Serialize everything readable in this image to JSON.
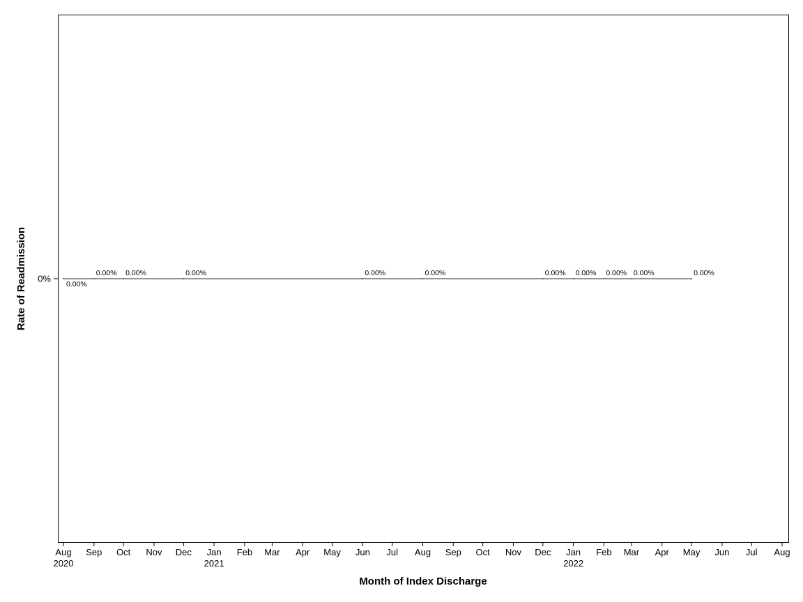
{
  "chart_data": {
    "type": "line",
    "title": "",
    "xlabel": "Month of Index Discharge",
    "ylabel": "Rate of Readmission",
    "x_axis": {
      "range": [
        "2020-08",
        "2022-08"
      ],
      "ticks": [
        {
          "date": "2020-08",
          "label": "Aug",
          "year": "2020"
        },
        {
          "date": "2020-09",
          "label": "Sep",
          "year": ""
        },
        {
          "date": "2020-10",
          "label": "Oct",
          "year": ""
        },
        {
          "date": "2020-11",
          "label": "Nov",
          "year": ""
        },
        {
          "date": "2020-12",
          "label": "Dec",
          "year": ""
        },
        {
          "date": "2021-01",
          "label": "Jan",
          "year": "2021"
        },
        {
          "date": "2021-02",
          "label": "Feb",
          "year": ""
        },
        {
          "date": "2021-03",
          "label": "Mar",
          "year": ""
        },
        {
          "date": "2021-04",
          "label": "Apr",
          "year": ""
        },
        {
          "date": "2021-05",
          "label": "May",
          "year": ""
        },
        {
          "date": "2021-06",
          "label": "Jun",
          "year": ""
        },
        {
          "date": "2021-07",
          "label": "Jul",
          "year": ""
        },
        {
          "date": "2021-08",
          "label": "Aug",
          "year": ""
        },
        {
          "date": "2021-09",
          "label": "Sep",
          "year": ""
        },
        {
          "date": "2021-10",
          "label": "Oct",
          "year": ""
        },
        {
          "date": "2021-11",
          "label": "Nov",
          "year": ""
        },
        {
          "date": "2021-12",
          "label": "Dec",
          "year": ""
        },
        {
          "date": "2022-01",
          "label": "Jan",
          "year": "2022"
        },
        {
          "date": "2022-02",
          "label": "Feb",
          "year": ""
        },
        {
          "date": "2022-03",
          "label": "Mar",
          "year": ""
        },
        {
          "date": "2022-04",
          "label": "Apr",
          "year": ""
        },
        {
          "date": "2022-05",
          "label": "May",
          "year": ""
        },
        {
          "date": "2022-06",
          "label": "Jun",
          "year": ""
        },
        {
          "date": "2022-07",
          "label": "Jul",
          "year": ""
        },
        {
          "date": "2022-08",
          "label": "Aug",
          "year": ""
        }
      ]
    },
    "y_axis": {
      "ticks": [
        {
          "value": 0,
          "label": "0%"
        }
      ]
    },
    "grid": false,
    "legend": "none",
    "series": [
      {
        "points": [
          {
            "x": "2020-08-01",
            "y": 0,
            "label": "0.00%",
            "label_pos": "below"
          },
          {
            "x": "2020-09-01",
            "y": 0,
            "label": "0.00%",
            "label_pos": "above"
          },
          {
            "x": "2020-10-01",
            "y": 0,
            "label": "0.00%",
            "label_pos": "above"
          },
          {
            "x": "2020-12-01",
            "y": 0,
            "label": "0.00%",
            "label_pos": "above"
          },
          {
            "x": "2021-06-01",
            "y": 0,
            "label": "0.00%",
            "label_pos": "above"
          },
          {
            "x": "2021-08-01",
            "y": 0,
            "label": "0.00%",
            "label_pos": "above"
          },
          {
            "x": "2021-12-01",
            "y": 0,
            "label": "0.00%",
            "label_pos": "above"
          },
          {
            "x": "2022-01-01",
            "y": 0,
            "label": "0.00%",
            "label_pos": "above"
          },
          {
            "x": "2022-02-01",
            "y": 0,
            "label": "0.00%",
            "label_pos": "above"
          },
          {
            "x": "2022-03-01",
            "y": 0,
            "label": "0.00%",
            "label_pos": "above"
          },
          {
            "x": "2022-05-01",
            "y": 0,
            "label": "0.00%",
            "label_pos": "above"
          }
        ]
      }
    ]
  }
}
